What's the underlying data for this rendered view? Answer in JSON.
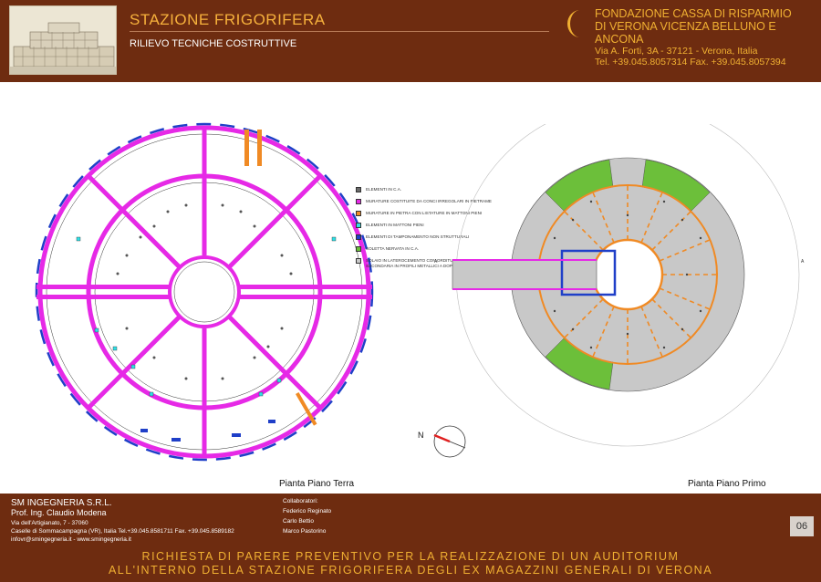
{
  "header": {
    "title": "STAZIONE FRIGORIFERA",
    "subtitle": "RILIEVO TECNICHE COSTRUTTIVE",
    "foundation": {
      "line1": "FONDAZIONE CASSA DI RISPARMIO",
      "line2": "DI VERONA VICENZA BELLUNO E ANCONA",
      "address": "Via A. Forti, 3A - 37121 - Verona, Italia",
      "phone": "Tel. +39.045.8057314 Fax. +39.045.8057394"
    }
  },
  "legend": [
    {
      "label": "Elementi in C.A.",
      "color": "#6b6b6b"
    },
    {
      "label": "Murature costituite da conci irregolari in pietrame",
      "color": "#e629e6"
    },
    {
      "label": "Murature in pietra con listature in mattoni pieni",
      "color": "#f08a24"
    },
    {
      "label": "Elementi in mattoni pieni",
      "color": "#2fe0e6"
    },
    {
      "label": "Elementi di tamponamento non strutturali",
      "color": "#1f3fc8"
    },
    {
      "label": "Soletta nervata in C.A.",
      "color": "#6cbf3a"
    },
    {
      "label": "Solaio in laterocemento con orditura principale e secondaria in profili metallici a doppio T",
      "color": "#c8c8c8"
    }
  ],
  "plans": {
    "ground_caption": "Pianta Piano Terra",
    "first_caption": "Pianta Piano Primo",
    "north": "N",
    "section_a": "A"
  },
  "footer": {
    "company": "SM INGEGNERIA S.R.L.",
    "prof": "Prof. Ing. Claudio Modena",
    "address1": "Via dell'Artigianato, 7 - 37060",
    "address2": "Caselle di Sommacampagna (VR), Italia  Tel.+39.045.8581711 Fax. +39.045.8589182",
    "contacts": "infovr@smingegneria.it - www.smingegneria.it",
    "collab_label": "Collaboratori:",
    "collaborators": [
      "Federico Reginato",
      "Carlo Bettio",
      "Marco Pastorino"
    ],
    "page": "06",
    "request_line1": "RICHIESTA DI PARERE PREVENTIVO PER LA REALIZZAZIONE DI UN AUDITORIUM",
    "request_line2": "ALL'INTERNO DELLA STAZIONE FRIGORIFERA DEGLI EX MAGAZZINI GENERALI DI VERONA"
  }
}
